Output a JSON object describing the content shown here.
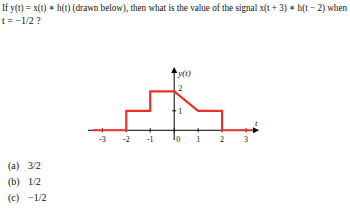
{
  "question": {
    "lines": [
      "If y(t) = x(t) ∗ h(t) (drawn below), then what is the value of the signal x(t + 3) ∗ h(t − 2) when",
      "t = −1/2 ?"
    ]
  },
  "chart_data": {
    "type": "line",
    "y_label": "y(t)",
    "x_label": "t",
    "x": [
      -3.4,
      -2,
      -2,
      -1,
      -1,
      0,
      1,
      2,
      2,
      3.3
    ],
    "series": [
      {
        "name": "y(t)",
        "color": "#e8322a",
        "values": [
          0,
          0,
          1,
          1,
          2,
          2,
          1,
          1,
          0,
          0
        ]
      }
    ],
    "xlim": [
      -3.6,
      3.5
    ],
    "ylim": [
      -0.5,
      3.2
    ],
    "xticks": [
      -3,
      -2,
      -1,
      0,
      1,
      2,
      3
    ],
    "yticks": [
      1,
      2
    ],
    "grid": false
  },
  "options": [
    {
      "label": "(a)",
      "text": "3/2"
    },
    {
      "label": "(b)",
      "text": "1/2"
    },
    {
      "label": "(c)",
      "text": "−1/2"
    }
  ]
}
